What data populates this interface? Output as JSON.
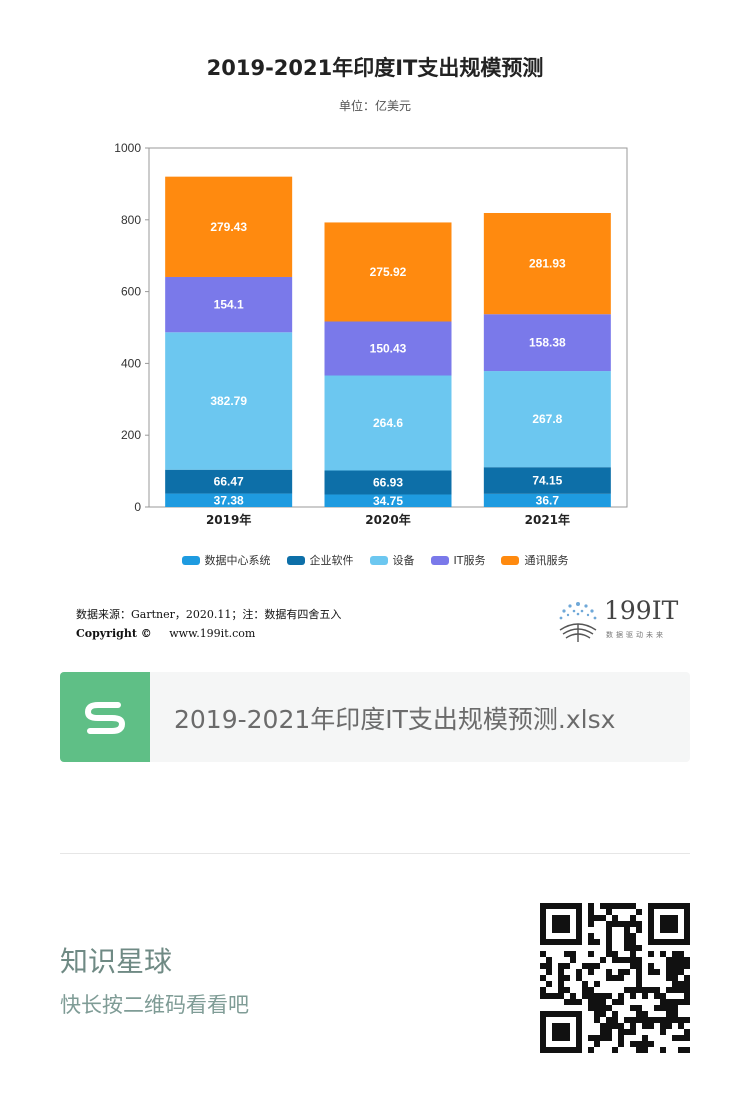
{
  "chart_data": {
    "type": "bar",
    "stacked": true,
    "title": "2019-2021年印度IT支出规模预测",
    "subtitle": "单位：亿美元",
    "categories": [
      "2019年",
      "2020年",
      "2021年"
    ],
    "series": [
      {
        "name": "数据中心系统",
        "color": "#1e9be0",
        "values": [
          37.38,
          34.75,
          36.7
        ]
      },
      {
        "name": "企业软件",
        "color": "#0d6fa8",
        "values": [
          66.47,
          66.93,
          74.15
        ]
      },
      {
        "name": "设备",
        "color": "#6cc7f0",
        "values": [
          382.79,
          264.6,
          267.8
        ]
      },
      {
        "name": "IT服务",
        "color": "#7a79ea",
        "values": [
          154.1,
          150.43,
          158.38
        ]
      },
      {
        "name": "通讯服务",
        "color": "#ff8a0f",
        "values": [
          279.43,
          275.92,
          281.93
        ]
      }
    ],
    "data_labels": [
      [
        "37.38",
        "34.75",
        "36.7"
      ],
      [
        "66.47",
        "66.93",
        "74.15"
      ],
      [
        "382.79",
        "264.6",
        "267.8"
      ],
      [
        "154.1",
        "150.43",
        "158.38"
      ],
      [
        "279.43",
        "275.92",
        "281.93"
      ]
    ],
    "ylim": [
      0,
      1000
    ],
    "yticks": [
      "0",
      "200",
      "400",
      "600",
      "800",
      "1000"
    ],
    "legend": "bottom",
    "grid": false
  },
  "footer": {
    "source": "数据来源：Gartner，2020.11；注：数据有四舍五入",
    "copyright_label": "Copyright ©",
    "copyright_url": "www.199it.com",
    "brand_name": "199IT",
    "brand_slogan": "数据驱动未来"
  },
  "file_card": {
    "icon": "spreadsheet-s-icon",
    "icon_color": "#5fbf86",
    "file_name": "2019-2021年印度IT支出规模预测.xlsx"
  },
  "promo": {
    "title": "知识星球",
    "subtitle": "快长按二维码看看吧",
    "qr_icon": "qr-code-icon"
  }
}
